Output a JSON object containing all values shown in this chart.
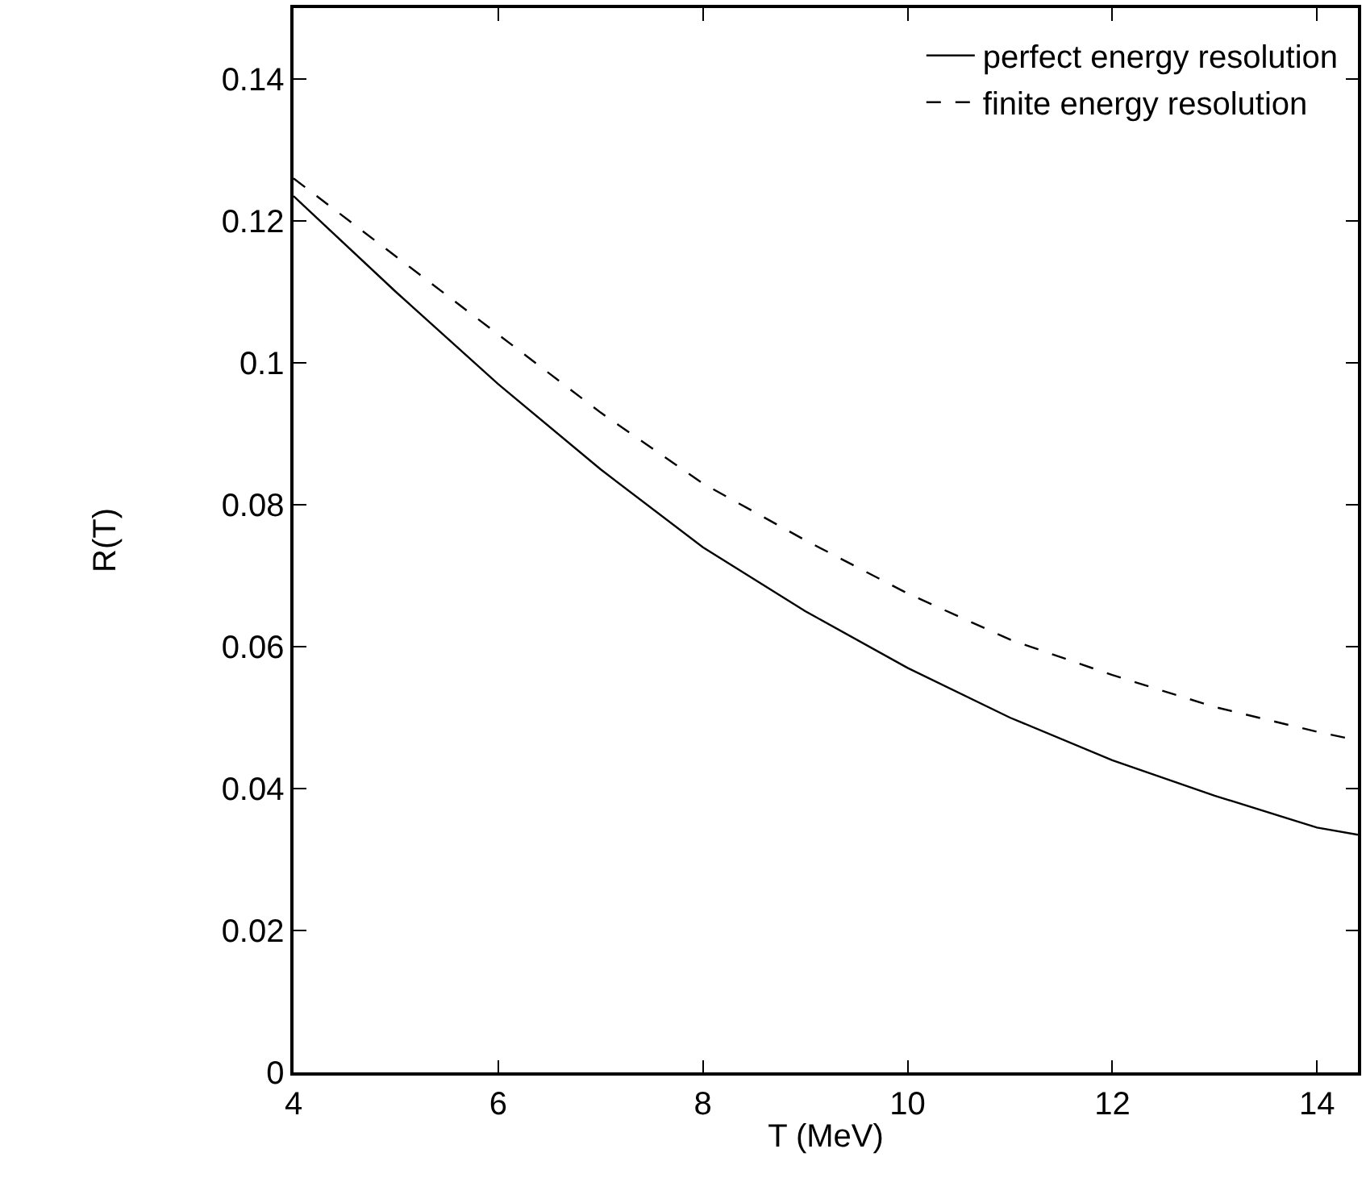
{
  "chart_data": {
    "type": "line",
    "xlabel": "T (MeV)",
    "ylabel": "R(T)",
    "x": [
      4,
      5,
      6,
      7,
      8,
      9,
      10,
      11,
      12,
      13,
      14,
      14.4
    ],
    "series": [
      {
        "name": "perfect energy resolution",
        "color": "#000000",
        "line_style": "solid",
        "values": [
          0.1235,
          0.11,
          0.097,
          0.085,
          0.074,
          0.065,
          0.057,
          0.05,
          0.044,
          0.039,
          0.0345,
          0.0335
        ]
      },
      {
        "name": "finite energy resolution",
        "color": "#000000",
        "line_style": "dashed",
        "values": [
          0.126,
          0.115,
          0.104,
          0.093,
          0.083,
          0.075,
          0.0675,
          0.061,
          0.056,
          0.0515,
          0.048,
          0.0468
        ]
      }
    ],
    "xlim": [
      4,
      14.4
    ],
    "ylim": [
      0,
      0.15
    ],
    "xticks": [
      4,
      6,
      8,
      10,
      12,
      14
    ],
    "yticks": [
      0,
      0.02,
      0.04,
      0.06,
      0.08,
      0.1,
      0.12,
      0.14
    ],
    "legend": "top right",
    "marker": "none"
  }
}
